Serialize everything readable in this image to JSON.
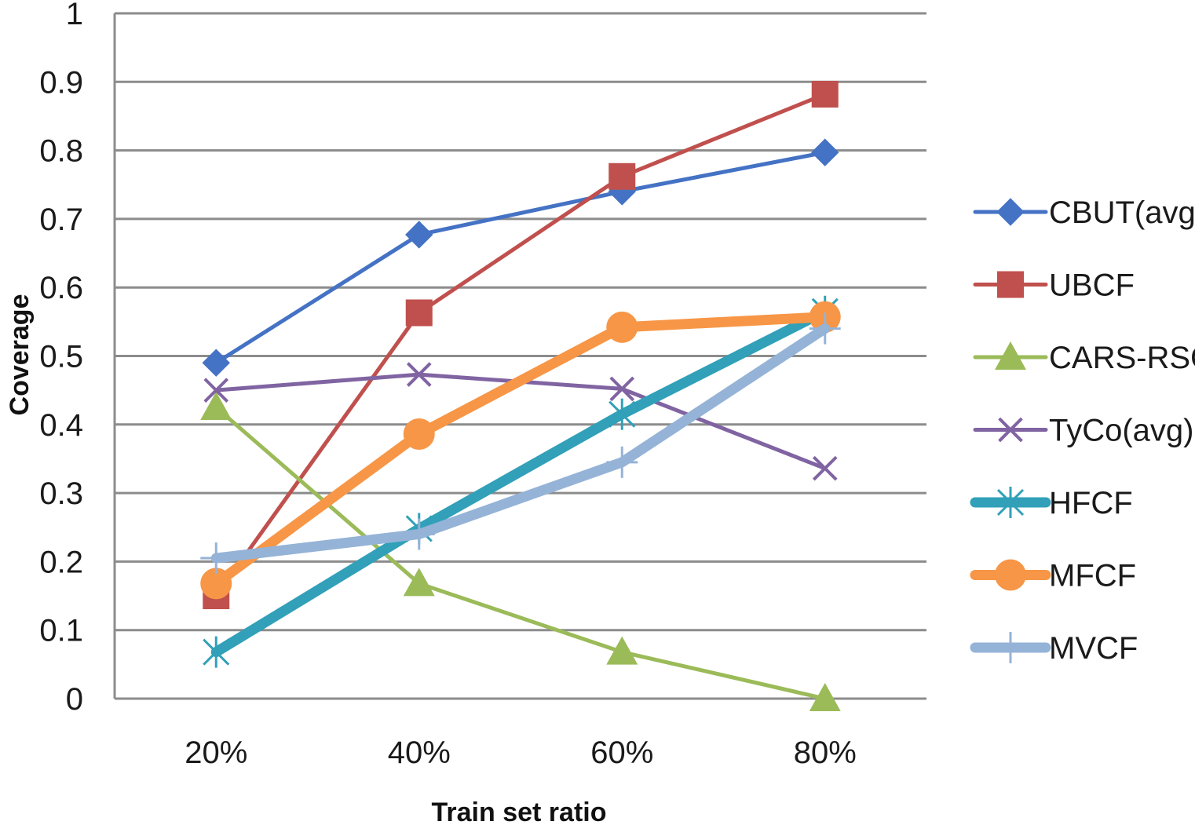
{
  "chart_data": {
    "type": "line",
    "title": "",
    "xlabel": "Train set ratio",
    "ylabel": "Coverage",
    "categories": [
      "20%",
      "40%",
      "60%",
      "80%"
    ],
    "ylim": [
      0,
      1
    ],
    "yticks": [
      "0",
      "0.1",
      "0.2",
      "0.3",
      "0.4",
      "0.5",
      "0.6",
      "0.7",
      "0.8",
      "0.9",
      "1"
    ],
    "grid": true,
    "legend_position": "right",
    "series": [
      {
        "name": "CBUT(avg)",
        "values": [
          0.49,
          0.677,
          0.74,
          0.797
        ],
        "color": "#4472C4",
        "marker": "diamond",
        "line_style": "thin"
      },
      {
        "name": "UBCF",
        "values": [
          0.15,
          0.563,
          0.762,
          0.882
        ],
        "color": "#C0504D",
        "marker": "square",
        "line_style": "thin"
      },
      {
        "name": "CARS-RSCF",
        "values": [
          0.425,
          0.168,
          0.068,
          0.0
        ],
        "color": "#9BBB59",
        "marker": "triangle",
        "line_style": "thin"
      },
      {
        "name": "TyCo(avg)",
        "values": [
          0.45,
          0.473,
          0.452,
          0.336
        ],
        "color": "#8064A2",
        "marker": "x",
        "line_style": "thin"
      },
      {
        "name": "HFCF",
        "values": [
          0.068,
          0.248,
          0.415,
          0.565
        ],
        "color": "#31A0B8",
        "marker": "star",
        "line_style": "thick"
      },
      {
        "name": "MFCF",
        "values": [
          0.168,
          0.386,
          0.542,
          0.557
        ],
        "color": "#F79646",
        "marker": "circle",
        "line_style": "thick"
      },
      {
        "name": "MVCF",
        "values": [
          0.205,
          0.24,
          0.345,
          0.54
        ],
        "color": "#95B3D7",
        "marker": "plus",
        "line_style": "thick"
      }
    ]
  }
}
